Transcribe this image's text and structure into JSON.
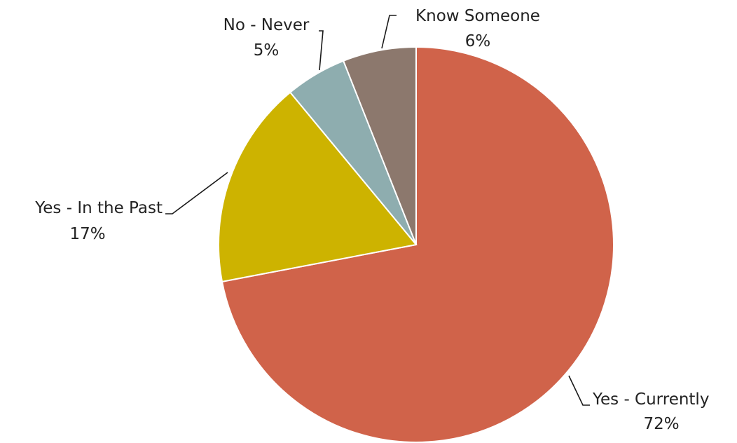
{
  "chart_data": {
    "type": "pie",
    "title": "",
    "start_angle_deg": 0,
    "direction": "clockwise",
    "slices": [
      {
        "name": "Yes - Currently",
        "value": 72,
        "label": "72%",
        "color": "#D0634A"
      },
      {
        "name": "Yes - In the Past",
        "value": 17,
        "label": "17%",
        "color": "#CDB300"
      },
      {
        "name": "No - Never",
        "value": 5,
        "label": "5%",
        "color": "#8EADAF"
      },
      {
        "name": "Know Someone",
        "value": 6,
        "label": "6%",
        "color": "#8C786D"
      }
    ],
    "legend": "none",
    "data_labels": "outside-with-leader-lines"
  }
}
